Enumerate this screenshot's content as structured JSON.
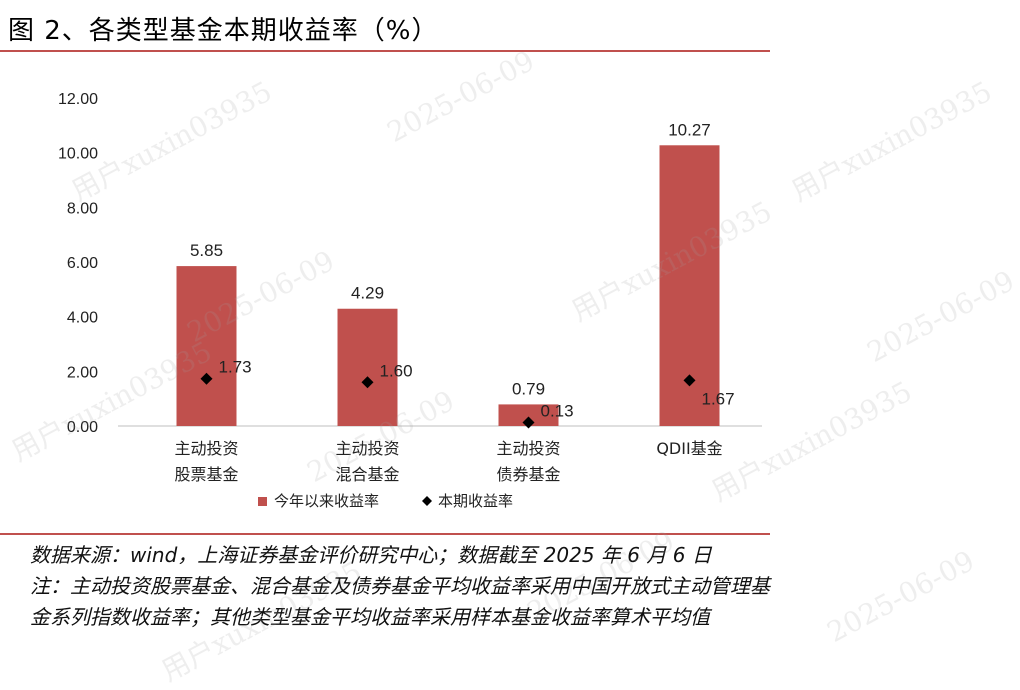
{
  "title": "图 2、各类型基金本期收益率（%）",
  "notes": {
    "source": "数据来源：wind，上海证券基金评价研究中心；数据截至 2025 年 6 月 6 日",
    "note_line1": "注：主动投资股票基金、混合基金及债券基金平均收益率采用中国开放式主动管理基",
    "note_line2": "金系列指数收益率；其他类型基金平均收益率采用样本基金收益率算术平均值"
  },
  "watermark": {
    "user": "用户xuxin03935",
    "date": "2025-06-09"
  },
  "colors": {
    "bar": "#c0504d",
    "marker": "#000000",
    "rule": "#c0504d"
  },
  "chart_data": {
    "type": "bar",
    "categories": [
      [
        "主动投资",
        "股票基金"
      ],
      [
        "主动投资",
        "混合基金"
      ],
      [
        "主动投资",
        "债券基金"
      ],
      [
        "QDII基金"
      ]
    ],
    "series": [
      {
        "name": "今年以来收益率",
        "kind": "bar",
        "values": [
          5.85,
          4.29,
          0.79,
          10.27
        ],
        "labels": [
          "5.85",
          "4.29",
          "0.79",
          "10.27"
        ]
      },
      {
        "name": "本期收益率",
        "kind": "marker",
        "values": [
          1.73,
          1.6,
          0.13,
          1.67
        ],
        "labels": [
          "1.73",
          "1.60",
          "0.13",
          "1.67"
        ]
      }
    ],
    "y_ticks": [
      "0.00",
      "2.00",
      "4.00",
      "6.00",
      "8.00",
      "10.00",
      "12.00"
    ],
    "ylim": [
      0,
      12
    ],
    "grid": false,
    "legend_position": "bottom"
  }
}
